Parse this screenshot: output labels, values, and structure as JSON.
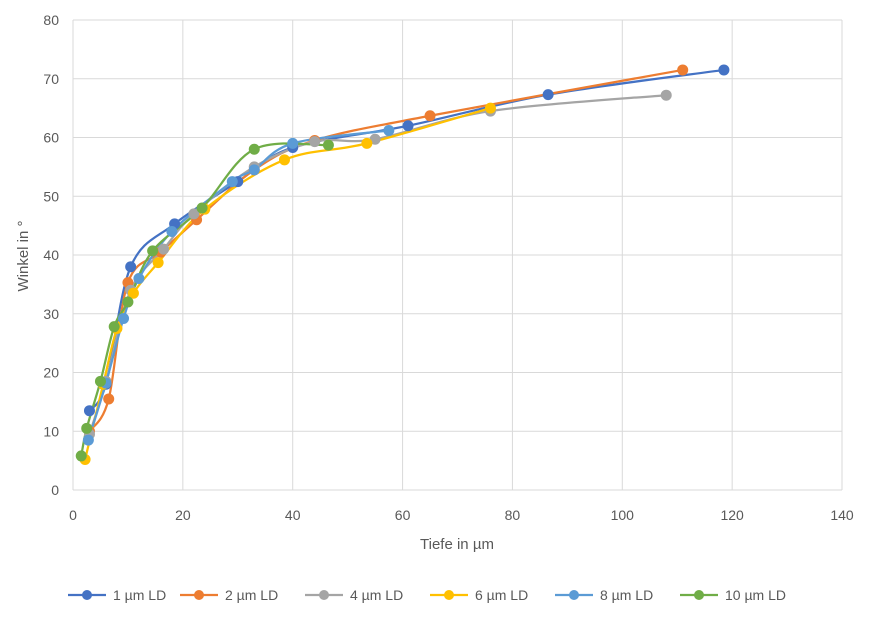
{
  "chart_data": {
    "type": "line",
    "title": "",
    "xlabel": "Tiefe in µm",
    "ylabel": "Winkel in °",
    "xlim": [
      0,
      140
    ],
    "ylim": [
      0,
      80
    ],
    "xticks": [
      0,
      20,
      40,
      60,
      80,
      100,
      120,
      140
    ],
    "yticks": [
      0,
      10,
      20,
      30,
      40,
      50,
      60,
      70,
      80
    ],
    "grid": "vertical and horizontal",
    "legend_position": "bottom",
    "smooth_lines": true,
    "series": [
      {
        "name": "1 µm LD",
        "color": "#4472C4",
        "x": [
          3,
          6,
          10.5,
          18.5,
          30,
          40,
          61,
          86.5,
          118.5
        ],
        "y": [
          13.5,
          18,
          38,
          45.3,
          52.5,
          58.3,
          62,
          67.3,
          71.5
        ]
      },
      {
        "name": "2 µm LD",
        "color": "#ED7D31",
        "x": [
          3,
          6.5,
          10,
          16,
          22.5,
          33,
          44,
          65,
          111
        ],
        "y": [
          10,
          15.5,
          35.3,
          40.5,
          46,
          54.5,
          59.5,
          63.7,
          71.5
        ]
      },
      {
        "name": "4 µm LD",
        "color": "#A5A5A5",
        "x": [
          3,
          6,
          10.5,
          16.5,
          22,
          33,
          44,
          55,
          76,
          108
        ],
        "y": [
          9.5,
          18.5,
          34,
          41,
          47,
          55,
          59.3,
          59.7,
          64.5,
          67.2
        ]
      },
      {
        "name": "6 µm LD",
        "color": "#FFC000",
        "x": [
          2.2,
          5.5,
          8,
          11,
          15.5,
          24,
          38.5,
          53.5,
          76
        ],
        "y": [
          5.2,
          18,
          27.5,
          33.5,
          38.7,
          47.8,
          56.2,
          59,
          65
        ]
      },
      {
        "name": "8 µm LD",
        "color": "#5B9BD5",
        "x": [
          2.8,
          6,
          9.2,
          12,
          18,
          29,
          33,
          40,
          57.5
        ],
        "y": [
          8.5,
          18.2,
          29.2,
          36,
          44,
          52.5,
          54.5,
          59,
          61.2
        ]
      },
      {
        "name": "10 µm LD",
        "color": "#70AD47",
        "x": [
          1.5,
          2.5,
          5,
          7.5,
          10,
          14.5,
          23.5,
          33,
          46.5
        ],
        "y": [
          5.8,
          10.5,
          18.5,
          27.8,
          32,
          40.7,
          48,
          58,
          58.7
        ]
      }
    ]
  }
}
